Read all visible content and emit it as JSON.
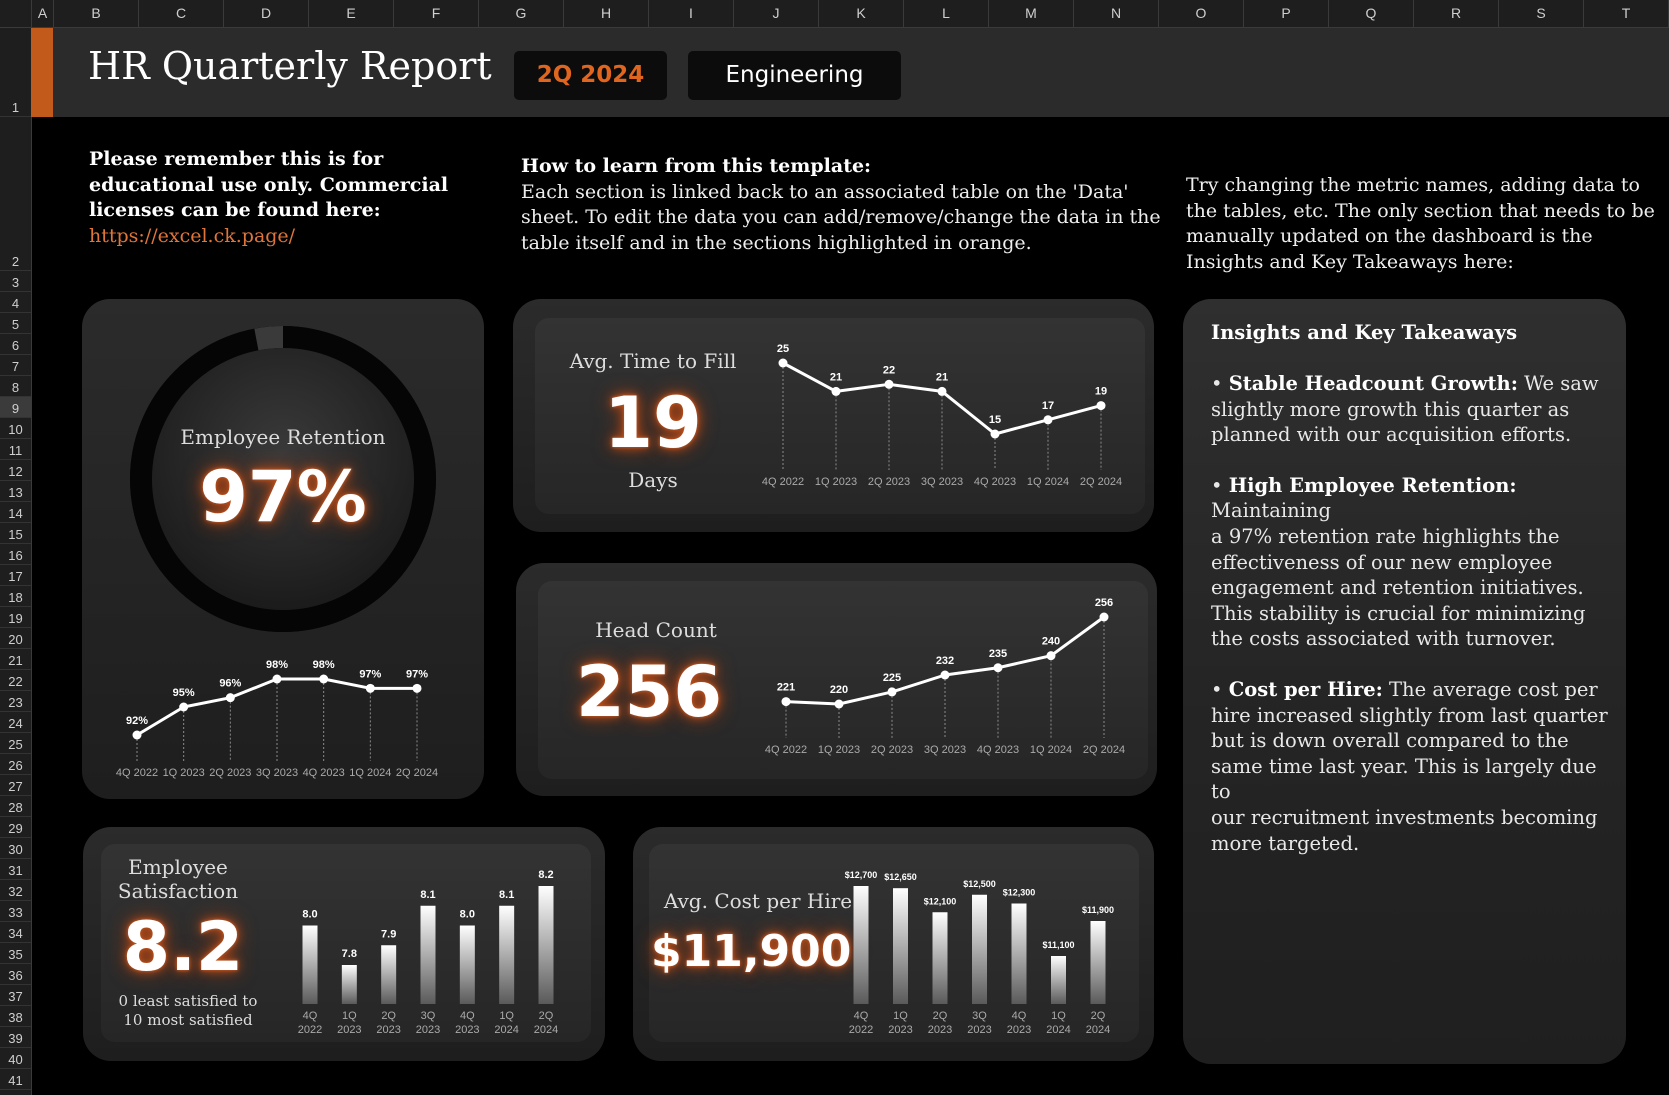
{
  "sheet": {
    "columns": [
      "A",
      "B",
      "C",
      "D",
      "E",
      "F",
      "G",
      "H",
      "I",
      "J",
      "K",
      "L",
      "M",
      "N",
      "O",
      "P",
      "Q",
      "R",
      "S",
      "T"
    ],
    "rows": [
      "1",
      "2",
      "3",
      "4",
      "5",
      "6",
      "7",
      "8",
      "9",
      "10",
      "11",
      "12",
      "13",
      "14",
      "15",
      "16",
      "17",
      "18",
      "19",
      "20",
      "21",
      "22",
      "23",
      "24",
      "25",
      "26",
      "27",
      "28",
      "29",
      "30",
      "31",
      "32",
      "33",
      "34",
      "35",
      "36",
      "37",
      "38",
      "39",
      "40",
      "41"
    ],
    "selected_row": "9"
  },
  "header": {
    "title": "HR Quarterly Report",
    "quarter": "2Q 2024",
    "department": "Engineering",
    "accent_color": "#c25a1c",
    "quarter_color": "#e0661f"
  },
  "notes": {
    "license_line1": "Please remember this is for",
    "license_line2": "educational use only. Commercial",
    "license_line3": "licenses can be found here:",
    "license_link": "https://excel.ck.page/",
    "howto_title": "How to learn from this template:",
    "howto_line1": "Each section is linked back to an associated table on the 'Data'",
    "howto_line2": "sheet. To edit the data you can add/remove/change the data in the",
    "howto_line3": "table itself and in the sections highlighted in orange.",
    "try_line1": "Try changing the metric names, adding data to",
    "try_line2": "the tables, etc. The only section that needs to be",
    "try_line3": "manually updated on the dashboard is the",
    "try_line4": "Insights and Key Takeaways here:"
  },
  "retention": {
    "label": "Employee Retention",
    "value": "97%",
    "gauge_fraction": 0.97,
    "chart_data": {
      "type": "line",
      "categories": [
        "4Q 2022",
        "1Q 2023",
        "2Q 2023",
        "3Q 2023",
        "4Q 2023",
        "1Q 2024",
        "2Q 2024"
      ],
      "values": [
        92,
        95,
        96,
        98,
        98,
        97,
        97
      ],
      "data_labels": [
        "92%",
        "95%",
        "96%",
        "98%",
        "98%",
        "97%",
        "97%"
      ]
    }
  },
  "time_to_fill": {
    "label": "Avg. Time to Fill",
    "value": "19",
    "unit": "Days",
    "chart_data": {
      "type": "line",
      "categories": [
        "4Q 2022",
        "1Q 2023",
        "2Q 2023",
        "3Q 2023",
        "4Q 2023",
        "1Q 2024",
        "2Q 2024"
      ],
      "values": [
        25,
        21,
        22,
        21,
        15,
        17,
        19
      ],
      "data_labels": [
        "25",
        "21",
        "22",
        "21",
        "15",
        "17",
        "19"
      ]
    }
  },
  "head_count": {
    "label": "Head Count",
    "value": "256",
    "chart_data": {
      "type": "line",
      "categories": [
        "4Q 2022",
        "1Q 2023",
        "2Q 2023",
        "3Q 2023",
        "4Q 2023",
        "1Q 2024",
        "2Q 2024"
      ],
      "values": [
        221,
        220,
        225,
        232,
        235,
        240,
        256
      ],
      "data_labels": [
        "221",
        "220",
        "225",
        "232",
        "235",
        "240",
        "256"
      ]
    }
  },
  "satisfaction": {
    "label_line1": "Employee",
    "label_line2": "Satisfaction",
    "value": "8.2",
    "scale_line1": "0 least satisfied to",
    "scale_line2": "10 most satisfied",
    "chart_data": {
      "type": "bar",
      "categories": [
        "4Q 2022",
        "1Q 2023",
        "2Q 2023",
        "3Q 2023",
        "4Q 2023",
        "1Q 2024",
        "2Q 2024"
      ],
      "values": [
        8.0,
        7.8,
        7.9,
        8.1,
        8.0,
        8.1,
        8.2
      ],
      "data_labels": [
        "8.0",
        "7.8",
        "7.9",
        "8.1",
        "8.0",
        "8.1",
        "8.2"
      ]
    }
  },
  "cost_per_hire": {
    "label": "Avg. Cost per Hire",
    "value": "$11,900",
    "chart_data": {
      "type": "bar",
      "categories": [
        "4Q 2022",
        "1Q 2023",
        "2Q 2023",
        "3Q 2023",
        "4Q 2023",
        "1Q 2024",
        "2Q 2024"
      ],
      "values": [
        12700,
        12650,
        12100,
        12500,
        12300,
        11100,
        11900
      ],
      "data_labels": [
        "$12,700",
        "$12,650",
        "$12,100",
        "$12,500",
        "$12,300",
        "$11,100",
        "$11,900"
      ]
    }
  },
  "insights": {
    "title": "Insights and Key Takeaways",
    "items": [
      {
        "heading": "Stable Headcount Growth:",
        "lines": [
          " We saw",
          "slightly more growth this quarter as",
          "planned with our acquisition efforts."
        ]
      },
      {
        "heading": "High Employee Retention:",
        "lines": [
          " Maintaining",
          "a 97% retention rate highlights the",
          "effectiveness of our new employee",
          "engagement and retention initiatives.",
          "This stability is crucial for minimizing",
          "the costs associated with turnover."
        ]
      },
      {
        "heading": "Cost per Hire:",
        "lines": [
          " The average cost per",
          "hire increased slightly from last quarter",
          "but is down overall compared to the",
          "same time last year. This is largely due to",
          "our recruitment investments becoming",
          "more targeted."
        ]
      }
    ]
  }
}
